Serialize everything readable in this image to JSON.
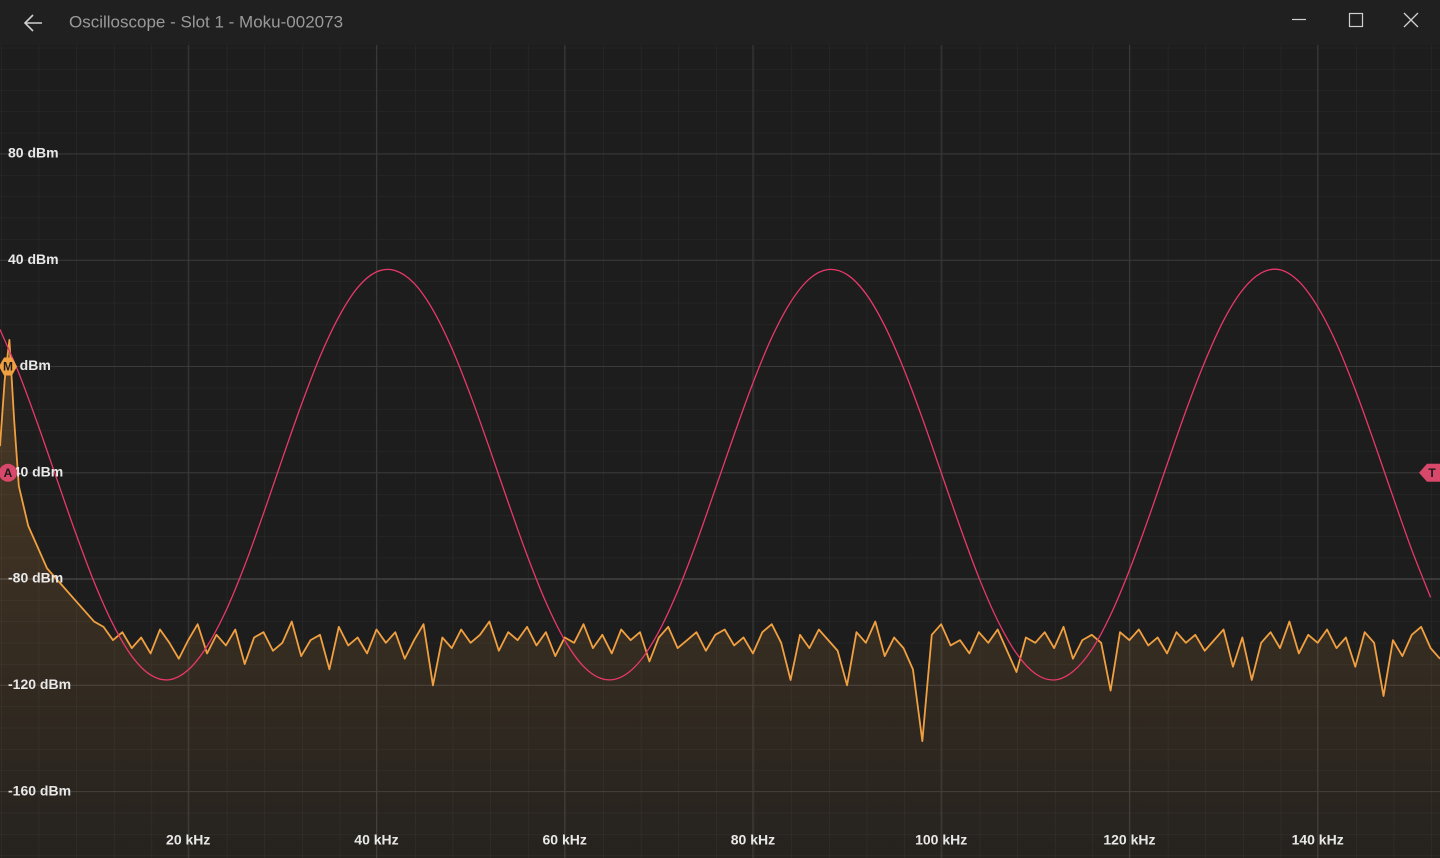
{
  "window": {
    "title": "Oscilloscope - Slot 1 - Moku-002073"
  },
  "chart_data": {
    "type": "line",
    "xlim": [
      0,
      153
    ],
    "ylim": [
      -185,
      121
    ],
    "xticks": [
      {
        "value": 20,
        "label": "20 kHz"
      },
      {
        "value": 40,
        "label": "40 kHz"
      },
      {
        "value": 60,
        "label": "60 kHz"
      },
      {
        "value": 80,
        "label": "80 kHz"
      },
      {
        "value": 100,
        "label": "100 kHz"
      },
      {
        "value": 120,
        "label": "120 kHz"
      },
      {
        "value": 140,
        "label": "140 kHz"
      }
    ],
    "yticks": [
      {
        "value": 80,
        "label": "80 dBm"
      },
      {
        "value": 40,
        "label": "40 dBm"
      },
      {
        "value": 0,
        "label": "0 dBm"
      },
      {
        "value": -40,
        "label": "-40 dBm"
      },
      {
        "value": -80,
        "label": "-80 dBm"
      },
      {
        "value": -120,
        "label": "-120 dBm"
      },
      {
        "value": -160,
        "label": "-160 dBm"
      }
    ],
    "grid": true,
    "series": [
      {
        "color": "#f0a040",
        "fill": true,
        "x": [
          0,
          0.5,
          1,
          1.5,
          2,
          3,
          4,
          5,
          6,
          7,
          8,
          9,
          10,
          11,
          12,
          13,
          14,
          15,
          16,
          17,
          18,
          19,
          20,
          21,
          22,
          23,
          24,
          25,
          26,
          27,
          28,
          29,
          30,
          31,
          32,
          33,
          34,
          35,
          36,
          37,
          38,
          39,
          40,
          41,
          42,
          43,
          44,
          45,
          46,
          47,
          48,
          49,
          50,
          51,
          52,
          53,
          54,
          55,
          56,
          57,
          58,
          59,
          60,
          61,
          62,
          63,
          64,
          65,
          66,
          67,
          68,
          69,
          70,
          71,
          72,
          73,
          74,
          75,
          76,
          77,
          78,
          79,
          80,
          81,
          82,
          83,
          84,
          85,
          86,
          87,
          88,
          89,
          90,
          91,
          92,
          93,
          94,
          95,
          96,
          97,
          98,
          99,
          100,
          101,
          102,
          103,
          104,
          105,
          106,
          107,
          108,
          109,
          110,
          111,
          112,
          113,
          114,
          115,
          116,
          117,
          118,
          119,
          120,
          121,
          122,
          123,
          124,
          125,
          126,
          127,
          128,
          129,
          130,
          131,
          132,
          133,
          134,
          135,
          136,
          137,
          138,
          139,
          140,
          141,
          142,
          143,
          144,
          145,
          146,
          147,
          148,
          149,
          150,
          151,
          152,
          153
        ],
        "values": [
          -30,
          -5,
          10,
          -20,
          -45,
          -60,
          -68,
          -76,
          -80,
          -84,
          -88,
          -92,
          -96,
          -98,
          -103,
          -100,
          -106,
          -102,
          -108,
          -99,
          -104,
          -110,
          -103,
          -97,
          -108,
          -101,
          -105,
          -99,
          -112,
          -102,
          -100,
          -107,
          -104,
          -96,
          -109,
          -103,
          -101,
          -114,
          -98,
          -105,
          -102,
          -108,
          -99,
          -104,
          -100,
          -110,
          -103,
          -97,
          -120,
          -102,
          -106,
          -99,
          -104,
          -101,
          -96,
          -107,
          -100,
          -103,
          -98,
          -105,
          -100,
          -109,
          -102,
          -104,
          -97,
          -106,
          -101,
          -108,
          -99,
          -103,
          -100,
          -111,
          -102,
          -98,
          -106,
          -103,
          -100,
          -107,
          -101,
          -99,
          -105,
          -102,
          -108,
          -100,
          -97,
          -104,
          -118,
          -101,
          -106,
          -99,
          -103,
          -107,
          -120,
          -100,
          -104,
          -96,
          -109,
          -102,
          -106,
          -114,
          -141,
          -101,
          -97,
          -105,
          -103,
          -108,
          -100,
          -104,
          -99,
          -107,
          -115,
          -102,
          -104,
          -100,
          -106,
          -98,
          -110,
          -103,
          -101,
          -104,
          -122,
          -100,
          -103,
          -99,
          -105,
          -102,
          -108,
          -100,
          -104,
          -101,
          -107,
          -103,
          -99,
          -113,
          -102,
          -118,
          -104,
          -100,
          -106,
          -96,
          -108,
          -101,
          -104,
          -99,
          -106,
          -102,
          -113,
          -100,
          -104,
          -124,
          -103,
          -109,
          -101,
          -98,
          -106,
          -110
        ]
      },
      {
        "color": "#e8386a",
        "fill": false,
        "smooth": true,
        "x": [
          0,
          2,
          4,
          6,
          8,
          10,
          12,
          14,
          16,
          18,
          20,
          22,
          24,
          26,
          28,
          30,
          32,
          34,
          36,
          38,
          40,
          42,
          44,
          46,
          48,
          50,
          52,
          54,
          56,
          58,
          60,
          62,
          64,
          66,
          68,
          70,
          72,
          74,
          76,
          78,
          80,
          82,
          84,
          86,
          88,
          90,
          92,
          94,
          96,
          98,
          100,
          102,
          104,
          106,
          108,
          110,
          112,
          114,
          116,
          118,
          120,
          122,
          124,
          126,
          128,
          130,
          132,
          134,
          136,
          138,
          140,
          142,
          144,
          146,
          148,
          150,
          152
        ],
        "values": [
          13.9,
          -2.5,
          -21.6,
          -42.0,
          -62.3,
          -81.1,
          -97.0,
          -109.0,
          -116.1,
          -117.9,
          -114.2,
          -105.3,
          -92.0,
          -74.9,
          -55.3,
          -34.7,
          -14.6,
          3.7,
          18.7,
          29.7,
          35.6,
          36.1,
          31.3,
          21.3,
          6.9,
          -10.9,
          -30.7,
          -51.2,
          -71.0,
          -88.7,
          -103.0,
          -112.9,
          -117.6,
          -116.9,
          -110.9,
          -99.8,
          -84.6,
          -66.3,
          -46.1,
          -25.7,
          -6.2,
          10.9,
          24.2,
          33.0,
          36.5,
          34.6,
          27.4,
          15.3,
          -0.7,
          -19.5,
          -39.9,
          -60.3,
          -79.4,
          -95.6,
          -108.0,
          -115.6,
          -118.0,
          -114.8,
          -106.6,
          -93.5,
          -76.7,
          -57.4,
          -36.9,
          -16.7,
          1.7,
          17.3,
          28.7,
          35.2,
          36.4,
          32.0,
          22.5,
          8.7,
          -8.8,
          -28.5,
          -49.0,
          -69.0,
          -86.9
        ]
      }
    ],
    "markers": [
      {
        "label": "M",
        "value": 0,
        "side": "left",
        "color": "#f0a040"
      },
      {
        "label": "A",
        "value": -40,
        "side": "left",
        "color": "#d8486a"
      },
      {
        "label": "T",
        "value": -40,
        "side": "right",
        "color": "#d8486a"
      }
    ]
  }
}
